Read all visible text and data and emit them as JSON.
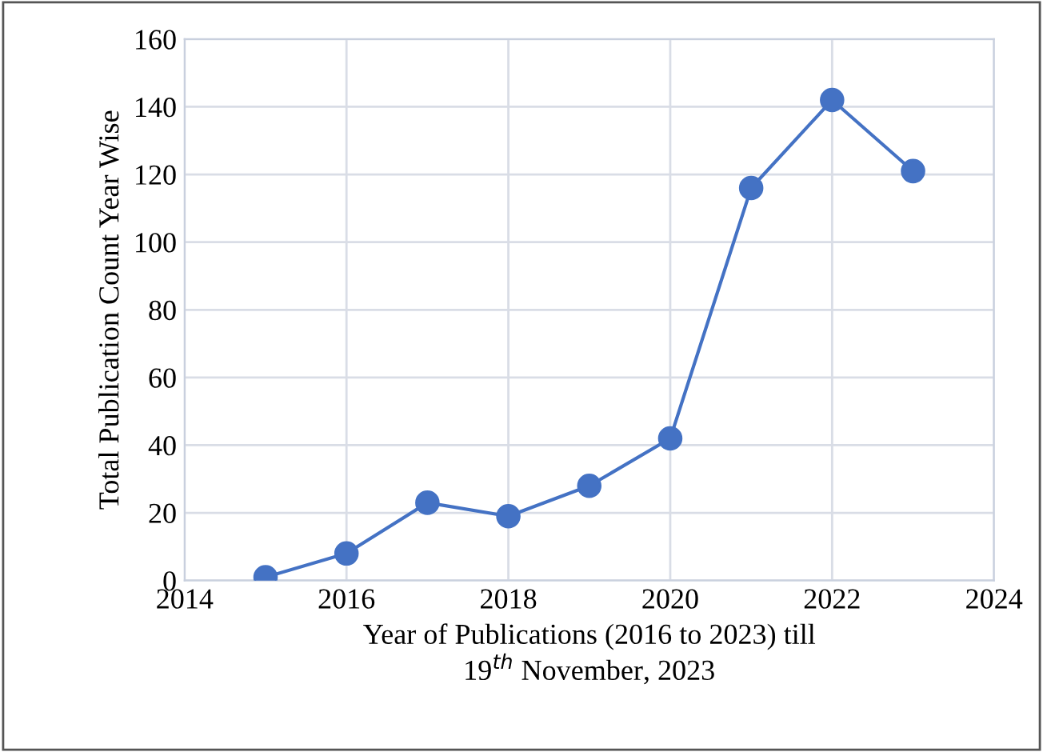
{
  "chart_data": {
    "type": "line",
    "xlabel": "Year of Publications (2016 to 2023) till\n19$^{th}$ November, 2023",
    "ylabel": "Total Publication Count Year Wise",
    "x": [
      2015,
      2016,
      2017,
      2018,
      2019,
      2020,
      2021,
      2022,
      2023
    ],
    "series": [
      {
        "color": "#4472c4",
        "values": [
          1,
          8,
          23,
          19,
          28,
          42,
          116,
          142,
          121
        ]
      }
    ],
    "xlim": [
      2014,
      2024
    ],
    "xticks": [
      2014,
      2016,
      2018,
      2020,
      2022,
      2024
    ],
    "ylim": [
      0,
      160
    ],
    "yticks": [
      0,
      20,
      40,
      60,
      80,
      100,
      120,
      140,
      160
    ],
    "grid": true,
    "marker": "circle",
    "line_style": "solid"
  }
}
